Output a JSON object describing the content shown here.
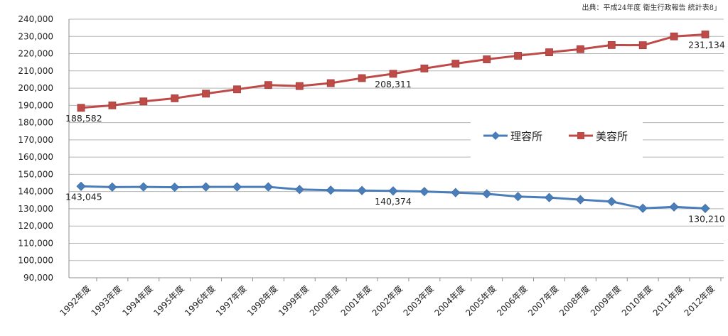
{
  "source_note": "出典：平成24年度 衛生行政報告  統計表8」",
  "chart_data": {
    "type": "line",
    "categories": [
      "1992年度",
      "1993年度",
      "1994年度",
      "1995年度",
      "1996年度",
      "1997年度",
      "1998年度",
      "1999年度",
      "2000年度",
      "2001年度",
      "2002年度",
      "2003年度",
      "2004年度",
      "2005年度",
      "2006年度",
      "2007年度",
      "2008年度",
      "2009年度",
      "2010年度",
      "2011年度",
      "2012年度"
    ],
    "ylim": [
      90000,
      240000
    ],
    "yticks": [
      90000,
      100000,
      110000,
      120000,
      130000,
      140000,
      150000,
      160000,
      170000,
      180000,
      190000,
      200000,
      210000,
      220000,
      230000,
      240000
    ],
    "ytick_labels": [
      "90,000",
      "100,000",
      "110,000",
      "120,000",
      "130,000",
      "140,000",
      "150,000",
      "160,000",
      "170,000",
      "180,000",
      "190,000",
      "200,000",
      "210,000",
      "220,000",
      "230,000",
      "240,000"
    ],
    "grid": true,
    "legend_position": "center-right",
    "series": [
      {
        "name": "理容所",
        "color": "#4a7ebb",
        "marker": "diamond",
        "values": [
          143045,
          142600,
          142700,
          142500,
          142700,
          142700,
          142700,
          141200,
          140800,
          140600,
          140374,
          140000,
          139400,
          138700,
          137100,
          136500,
          135300,
          134200,
          130300,
          131100,
          130210
        ]
      },
      {
        "name": "美容所",
        "color": "#be4b48",
        "marker": "square",
        "values": [
          188582,
          190000,
          192300,
          194100,
          196800,
          199300,
          201800,
          201200,
          202900,
          205800,
          208311,
          211400,
          214200,
          216700,
          218800,
          220800,
          222600,
          225000,
          224900,
          230000,
          231134
        ]
      }
    ],
    "annotations": [
      {
        "text": "188,582",
        "series": 1,
        "index": 0,
        "placement": "below"
      },
      {
        "text": "208,311",
        "series": 1,
        "index": 10,
        "placement": "below"
      },
      {
        "text": "231,134",
        "series": 1,
        "index": 20,
        "placement": "below"
      },
      {
        "text": "143,045",
        "series": 0,
        "index": 0,
        "placement": "below"
      },
      {
        "text": "140,374",
        "series": 0,
        "index": 10,
        "placement": "below"
      },
      {
        "text": "130,210",
        "series": 0,
        "index": 20,
        "placement": "below"
      }
    ]
  }
}
